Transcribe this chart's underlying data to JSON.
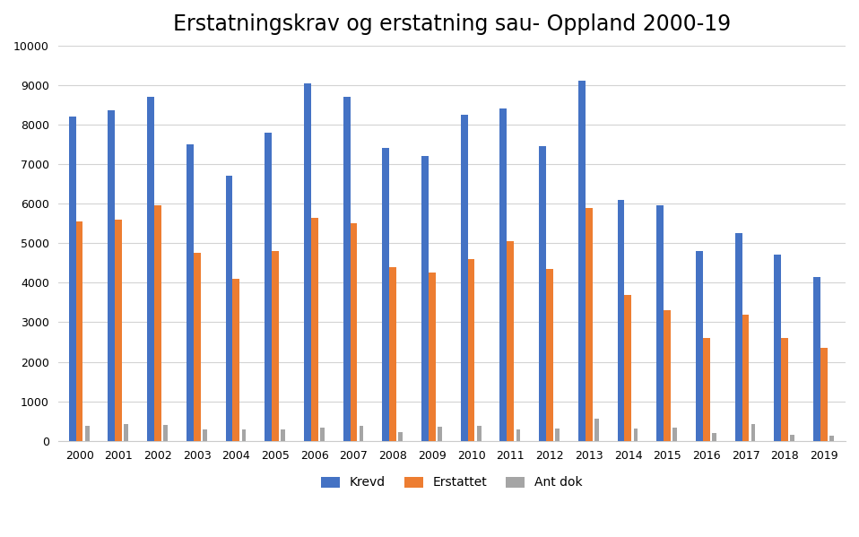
{
  "title": "Erstatningskrav og erstatning sau- Oppland 2000-19",
  "years": [
    2000,
    2001,
    2002,
    2003,
    2004,
    2005,
    2006,
    2007,
    2008,
    2009,
    2010,
    2011,
    2012,
    2013,
    2014,
    2015,
    2016,
    2017,
    2018,
    2019
  ],
  "krevd": [
    8200,
    8350,
    8700,
    7500,
    6700,
    7800,
    9050,
    8700,
    7400,
    7200,
    8250,
    8400,
    7450,
    9100,
    6100,
    5950,
    4800,
    5250,
    4700,
    4150
  ],
  "erstattet": [
    5550,
    5600,
    5950,
    4750,
    4100,
    4800,
    5650,
    5500,
    4400,
    4250,
    4600,
    5050,
    4350,
    5900,
    3700,
    3300,
    2600,
    3200,
    2600,
    2350
  ],
  "ant_dok": [
    380,
    420,
    400,
    280,
    300,
    290,
    330,
    370,
    220,
    360,
    390,
    290,
    310,
    560,
    310,
    330,
    210,
    420,
    150,
    130
  ],
  "bar_colors": {
    "krevd": "#4472C4",
    "erstattet": "#ED7D31",
    "ant_dok": "#A5A5A5"
  },
  "ylim": [
    0,
    10000
  ],
  "yticks": [
    0,
    1000,
    2000,
    3000,
    4000,
    5000,
    6000,
    7000,
    8000,
    9000,
    10000
  ],
  "legend_labels": [
    "Krevd",
    "Erstattet",
    "Ant dok"
  ],
  "background_color": "#FFFFFF",
  "grid_color": "#D3D3D3",
  "title_fontsize": 17,
  "tick_fontsize": 9,
  "legend_fontsize": 10
}
